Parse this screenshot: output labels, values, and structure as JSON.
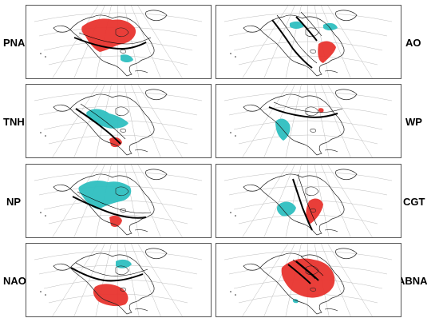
{
  "panels": [
    {
      "label": "PNA",
      "pattern": "pna"
    },
    {
      "label": "AO",
      "pattern": "ao"
    },
    {
      "label": "TNH",
      "pattern": "tnh"
    },
    {
      "label": "WP",
      "pattern": "wp"
    },
    {
      "label": "NP",
      "pattern": "np"
    },
    {
      "label": "CGT",
      "pattern": "cgt"
    },
    {
      "label": "NAO",
      "pattern": "nao"
    },
    {
      "label": "ABNA",
      "pattern": "abna"
    }
  ],
  "colors": {
    "positive_shading": "#e8342e",
    "negative_shading": "#2ebfc0",
    "contour": "#000000",
    "land_outline": "#222222",
    "grid": "#bdbdbd"
  }
}
